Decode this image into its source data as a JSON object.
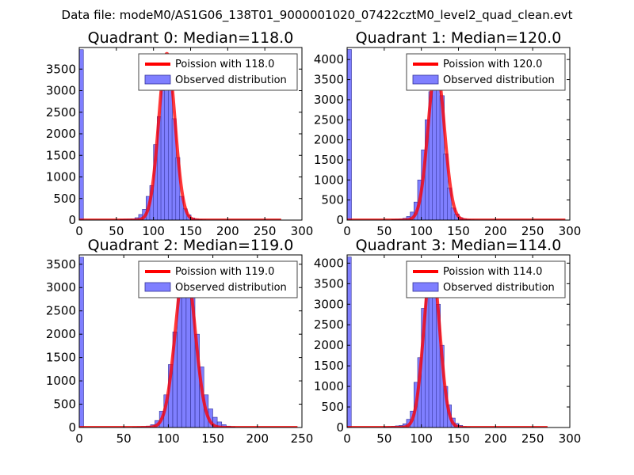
{
  "figure_title": "Data file: modeM0/AS1G06_138T01_9000001020_07422cztM0_level2_quad_clean.evt",
  "colors": {
    "bars": "#7f7fff",
    "bar_edge": "#333399",
    "poisson": "#ff0000"
  },
  "chart_data": [
    {
      "type": "bar",
      "title": "Quadrant 0: Median=118.0",
      "median": 118.0,
      "legend": [
        "Poission with 118.0",
        "Observed distribution"
      ],
      "xlim": [
        0,
        300
      ],
      "ylim": [
        0,
        4000
      ],
      "xticks": [
        "0",
        "50",
        "100",
        "150",
        "200",
        "250",
        "300"
      ],
      "yticks": [
        "0",
        "500",
        "1000",
        "1500",
        "2000",
        "2500",
        "3000",
        "3500"
      ],
      "xtick_values": [
        0,
        50,
        100,
        150,
        200,
        250,
        300
      ],
      "ytick_values": [
        0,
        500,
        1000,
        1500,
        2000,
        2500,
        3000,
        3500
      ],
      "poisson_peak": 3860,
      "poisson_xmax": 272,
      "bin_width": 5.6,
      "first_bin_value": 3950,
      "bins": [
        [
          55,
          15
        ],
        [
          60,
          20
        ],
        [
          65,
          25
        ],
        [
          70,
          30
        ],
        [
          75,
          55
        ],
        [
          80,
          130
        ],
        [
          85,
          250
        ],
        [
          90,
          550
        ],
        [
          95,
          800
        ],
        [
          100,
          1750
        ],
        [
          105,
          2400
        ],
        [
          110,
          3000
        ],
        [
          115,
          3800
        ],
        [
          120,
          3600
        ],
        [
          125,
          2350
        ],
        [
          130,
          1450
        ],
        [
          135,
          550
        ],
        [
          140,
          260
        ],
        [
          145,
          120
        ],
        [
          150,
          50
        ],
        [
          155,
          25
        ],
        [
          160,
          12
        ],
        [
          165,
          8
        ],
        [
          170,
          5
        ]
      ]
    },
    {
      "type": "bar",
      "title": "Quadrant 1: Median=120.0",
      "median": 120.0,
      "legend": [
        "Poission with 120.0",
        "Observed distribution"
      ],
      "xlim": [
        0,
        300
      ],
      "ylim": [
        0,
        4300
      ],
      "xticks": [
        "0",
        "50",
        "100",
        "150",
        "200",
        "250",
        "300"
      ],
      "yticks": [
        "0",
        "500",
        "1000",
        "1500",
        "2000",
        "2500",
        "3000",
        "3500",
        "4000"
      ],
      "xtick_values": [
        0,
        50,
        100,
        150,
        200,
        250,
        300
      ],
      "ytick_values": [
        0,
        500,
        1000,
        1500,
        2000,
        2500,
        3000,
        3500,
        4000
      ],
      "poisson_peak": 3840,
      "poisson_xmax": 294,
      "bin_width": 5.9,
      "first_bin_value": 4250,
      "bins": [
        [
          60,
          15
        ],
        [
          65,
          20
        ],
        [
          70,
          30
        ],
        [
          75,
          45
        ],
        [
          80,
          90
        ],
        [
          85,
          200
        ],
        [
          90,
          450
        ],
        [
          95,
          1000
        ],
        [
          100,
          1750
        ],
        [
          105,
          2500
        ],
        [
          110,
          3200
        ],
        [
          115,
          3800
        ],
        [
          120,
          3600
        ],
        [
          125,
          3100
        ],
        [
          130,
          1650
        ],
        [
          135,
          800
        ],
        [
          140,
          300
        ],
        [
          145,
          150
        ],
        [
          150,
          60
        ],
        [
          155,
          30
        ],
        [
          160,
          15
        ],
        [
          165,
          8
        ],
        [
          170,
          5
        ]
      ]
    },
    {
      "type": "bar",
      "title": "Quadrant 2: Median=119.0",
      "median": 119.0,
      "legend": [
        "Poission with 119.0",
        "Observed distribution"
      ],
      "xlim": [
        0,
        250
      ],
      "ylim": [
        0,
        3700
      ],
      "xticks": [
        "0",
        "50",
        "100",
        "150",
        "200",
        "250"
      ],
      "yticks": [
        "0",
        "500",
        "1000",
        "1500",
        "2000",
        "2500",
        "3000",
        "3500"
      ],
      "xtick_values": [
        0,
        50,
        100,
        150,
        200,
        250
      ],
      "ytick_values": [
        0,
        500,
        1000,
        1500,
        2000,
        2500,
        3000,
        3500
      ],
      "poisson_peak": 3520,
      "poisson_xmax": 245,
      "bin_width": 4.9,
      "first_bin_value": 3650,
      "bins": [
        [
          60,
          10
        ],
        [
          65,
          15
        ],
        [
          70,
          20
        ],
        [
          75,
          30
        ],
        [
          80,
          60
        ],
        [
          85,
          150
        ],
        [
          90,
          350
        ],
        [
          95,
          700
        ],
        [
          100,
          1350
        ],
        [
          105,
          2050
        ],
        [
          110,
          2900
        ],
        [
          115,
          3400
        ],
        [
          120,
          3500
        ],
        [
          125,
          2900
        ],
        [
          130,
          2000
        ],
        [
          135,
          1300
        ],
        [
          140,
          700
        ],
        [
          145,
          400
        ],
        [
          150,
          220
        ],
        [
          155,
          120
        ],
        [
          160,
          60
        ],
        [
          165,
          30
        ],
        [
          170,
          15
        ]
      ]
    },
    {
      "type": "bar",
      "title": "Quadrant 3: Median=114.0",
      "median": 114.0,
      "legend": [
        "Poission with 114.0",
        "Observed distribution"
      ],
      "xlim": [
        0,
        300
      ],
      "ylim": [
        0,
        4200
      ],
      "xticks": [
        "0",
        "50",
        "100",
        "150",
        "200",
        "250",
        "300"
      ],
      "yticks": [
        "0",
        "500",
        "1000",
        "1500",
        "2000",
        "2500",
        "3000",
        "3500",
        "4000"
      ],
      "xtick_values": [
        0,
        50,
        100,
        150,
        200,
        250,
        300
      ],
      "ytick_values": [
        0,
        500,
        1000,
        1500,
        2000,
        2500,
        3000,
        3500,
        4000
      ],
      "poisson_peak": 3980,
      "poisson_xmax": 270,
      "bin_width": 5.6,
      "first_bin_value": 4150,
      "bins": [
        [
          50,
          15
        ],
        [
          55,
          20
        ],
        [
          60,
          30
        ],
        [
          65,
          40
        ],
        [
          70,
          50
        ],
        [
          75,
          90
        ],
        [
          80,
          200
        ],
        [
          85,
          400
        ],
        [
          90,
          1100
        ],
        [
          95,
          1700
        ],
        [
          100,
          2900
        ],
        [
          105,
          3500
        ],
        [
          110,
          4000
        ],
        [
          115,
          3700
        ],
        [
          120,
          3000
        ],
        [
          125,
          2000
        ],
        [
          130,
          1000
        ],
        [
          135,
          550
        ],
        [
          140,
          230
        ],
        [
          145,
          100
        ],
        [
          150,
          50
        ],
        [
          155,
          20
        ],
        [
          160,
          10
        ]
      ]
    }
  ]
}
